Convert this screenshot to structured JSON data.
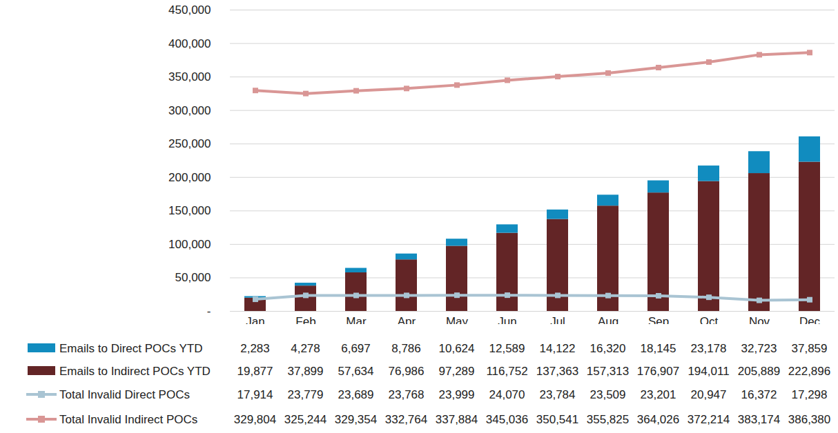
{
  "chart_data": {
    "type": "bar",
    "stacked": true,
    "grid": true,
    "categories": [
      "Jan",
      "Feb",
      "Mar",
      "Apr",
      "May",
      "Jun",
      "Jul",
      "Aug",
      "Sep",
      "Oct",
      "Nov",
      "Dec"
    ],
    "ylim": [
      0,
      450000
    ],
    "yticks": [
      {
        "value": 0,
        "label": "-"
      },
      {
        "value": 50000,
        "label": "50,000"
      },
      {
        "value": 100000,
        "label": "100,000"
      },
      {
        "value": 150000,
        "label": "150,000"
      },
      {
        "value": 200000,
        "label": "200,000"
      },
      {
        "value": 250000,
        "label": "250,000"
      },
      {
        "value": 300000,
        "label": "300,000"
      },
      {
        "value": 350000,
        "label": "350,000"
      },
      {
        "value": 400000,
        "label": "400,000"
      },
      {
        "value": 450000,
        "label": "450,000"
      }
    ],
    "series": [
      {
        "name": "Emails to Direct POCs YTD",
        "type": "bar",
        "color": "#118cbf",
        "values": [
          2283,
          4278,
          6697,
          8786,
          10624,
          12589,
          14122,
          16320,
          18145,
          23178,
          32723,
          37859
        ],
        "value_labels": [
          "2,283",
          "4,278",
          "6,697",
          "8,786",
          "10,624",
          "12,589",
          "14,122",
          "16,320",
          "18,145",
          "23,178",
          "32,723",
          "37,859"
        ]
      },
      {
        "name": "Emails to Indirect POCs YTD",
        "type": "bar",
        "color": "#632526",
        "values": [
          19877,
          37899,
          57634,
          76986,
          97289,
          116752,
          137363,
          157313,
          176907,
          194011,
          205889,
          222896
        ],
        "value_labels": [
          "19,877",
          "37,899",
          "57,634",
          "76,986",
          "97,289",
          "116,752",
          "137,363",
          "157,313",
          "176,907",
          "194,011",
          "205,889",
          "222,896"
        ]
      },
      {
        "name": "Total Invalid Direct POCs",
        "type": "line",
        "color": "#a9c4d3",
        "marker": "square",
        "line_style": "solid",
        "values": [
          17914,
          23779,
          23689,
          23768,
          23999,
          24070,
          23784,
          23509,
          23201,
          20947,
          16372,
          17298
        ],
        "value_labels": [
          "17,914",
          "23,779",
          "23,689",
          "23,768",
          "23,999",
          "24,070",
          "23,784",
          "23,509",
          "23,201",
          "20,947",
          "16,372",
          "17,298"
        ]
      },
      {
        "name": "Total Invalid Indirect POCs",
        "type": "line",
        "color": "#d99695",
        "marker": "square",
        "line_style": "solid",
        "values": [
          329804,
          325244,
          329354,
          332764,
          337884,
          345036,
          350541,
          355825,
          364026,
          372214,
          383174,
          386380
        ],
        "value_labels": [
          "329,804",
          "325,244",
          "329,354",
          "332,764",
          "337,884",
          "345,036",
          "350,541",
          "355,825",
          "364,026",
          "372,214",
          "383,174",
          "386,380"
        ]
      }
    ]
  }
}
